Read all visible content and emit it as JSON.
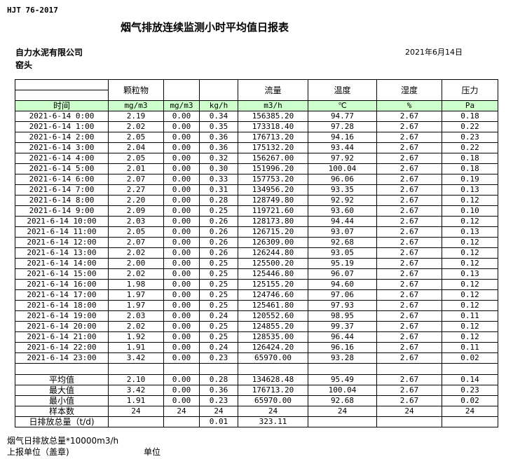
{
  "standard": "HJT  76-2017",
  "title": "烟气排放连续监测小时平均值日报表",
  "company": "自力水泥有限公司",
  "date": "2021年6月14日",
  "location": "窑头",
  "headers": [
    "",
    "颗粒物",
    "",
    "",
    "流量",
    "温度",
    "湿度",
    "压力"
  ],
  "units": [
    "时间",
    "mg/m3",
    "mg/m3",
    "kg/h",
    "m3/h",
    "℃",
    "%",
    "Pa"
  ],
  "rows": [
    [
      "2021-6-14 0:00",
      "2.19",
      "0.00",
      "0.34",
      "156385.20",
      "94.77",
      "2.67",
      "0.18"
    ],
    [
      "2021-6-14 1:00",
      "2.02",
      "0.00",
      "0.35",
      "173318.40",
      "97.28",
      "2.67",
      "0.22"
    ],
    [
      "2021-6-14 2:00",
      "2.05",
      "0.00",
      "0.36",
      "176713.20",
      "94.16",
      "2.67",
      "0.23"
    ],
    [
      "2021-6-14 3:00",
      "2.04",
      "0.00",
      "0.36",
      "175132.20",
      "93.44",
      "2.67",
      "0.22"
    ],
    [
      "2021-6-14 4:00",
      "2.05",
      "0.00",
      "0.32",
      "156267.00",
      "97.92",
      "2.67",
      "0.18"
    ],
    [
      "2021-6-14 5:00",
      "2.01",
      "0.00",
      "0.30",
      "151996.20",
      "100.04",
      "2.67",
      "0.18"
    ],
    [
      "2021-6-14 6:00",
      "2.07",
      "0.00",
      "0.33",
      "157753.20",
      "96.06",
      "2.67",
      "0.19"
    ],
    [
      "2021-6-14 7:00",
      "2.27",
      "0.00",
      "0.31",
      "134956.20",
      "93.35",
      "2.67",
      "0.13"
    ],
    [
      "2021-6-14 8:00",
      "2.20",
      "0.00",
      "0.28",
      "128749.80",
      "92.92",
      "2.67",
      "0.12"
    ],
    [
      "2021-6-14 9:00",
      "2.09",
      "0.00",
      "0.25",
      "119721.60",
      "93.60",
      "2.67",
      "0.10"
    ],
    [
      "2021-6-14 10:00",
      "2.03",
      "0.00",
      "0.26",
      "128173.80",
      "94.44",
      "2.67",
      "0.12"
    ],
    [
      "2021-6-14 11:00",
      "2.05",
      "0.00",
      "0.26",
      "126715.20",
      "93.07",
      "2.67",
      "0.13"
    ],
    [
      "2021-6-14 12:00",
      "2.07",
      "0.00",
      "0.26",
      "126309.00",
      "92.68",
      "2.67",
      "0.12"
    ],
    [
      "2021-6-14 13:00",
      "2.02",
      "0.00",
      "0.26",
      "126244.80",
      "93.05",
      "2.67",
      "0.12"
    ],
    [
      "2021-6-14 14:00",
      "2.00",
      "0.00",
      "0.25",
      "125500.20",
      "95.19",
      "2.67",
      "0.12"
    ],
    [
      "2021-6-14 15:00",
      "2.02",
      "0.00",
      "0.25",
      "125446.80",
      "96.07",
      "2.67",
      "0.13"
    ],
    [
      "2021-6-14 16:00",
      "1.98",
      "0.00",
      "0.25",
      "125155.20",
      "94.60",
      "2.67",
      "0.12"
    ],
    [
      "2021-6-14 17:00",
      "1.97",
      "0.00",
      "0.25",
      "124746.60",
      "97.06",
      "2.67",
      "0.12"
    ],
    [
      "2021-6-14 18:00",
      "1.97",
      "0.00",
      "0.25",
      "125461.80",
      "97.93",
      "2.67",
      "0.12"
    ],
    [
      "2021-6-14 19:00",
      "2.03",
      "0.00",
      "0.24",
      "120552.60",
      "98.95",
      "2.67",
      "0.11"
    ],
    [
      "2021-6-14 20:00",
      "2.02",
      "0.00",
      "0.25",
      "124855.20",
      "99.37",
      "2.67",
      "0.12"
    ],
    [
      "2021-6-14 21:00",
      "1.92",
      "0.00",
      "0.25",
      "128535.00",
      "96.44",
      "2.67",
      "0.12"
    ],
    [
      "2021-6-14 22:00",
      "1.91",
      "0.00",
      "0.24",
      "126424.20",
      "96.16",
      "2.67",
      "0.11"
    ],
    [
      "2021-6-14 23:00",
      "3.42",
      "0.00",
      "0.23",
      "65970.00",
      "93.28",
      "2.67",
      "0.02"
    ]
  ],
  "summary": [
    [
      "平均值",
      "2.10",
      "0.00",
      "0.28",
      "134628.48",
      "95.49",
      "2.67",
      "0.14"
    ],
    [
      "最大值",
      "3.42",
      "0.00",
      "0.36",
      "176713.20",
      "100.04",
      "2.67",
      "0.23"
    ],
    [
      "最小值",
      "1.91",
      "0.00",
      "0.23",
      "65970.00",
      "92.68",
      "2.67",
      "0.02"
    ],
    [
      "样本数",
      "24",
      "24",
      "24",
      "24",
      "24",
      "24",
      "24"
    ],
    [
      "日排放总量（t/d)",
      "",
      "",
      "0.01",
      "323.11",
      "",
      "",
      ""
    ]
  ],
  "note": "烟气日排放总量*10000m3/h",
  "sign_label": "上报单位（盖章)",
  "unit_label": "单位",
  "colors": {
    "unit_row_bg": "#ccffcc"
  }
}
